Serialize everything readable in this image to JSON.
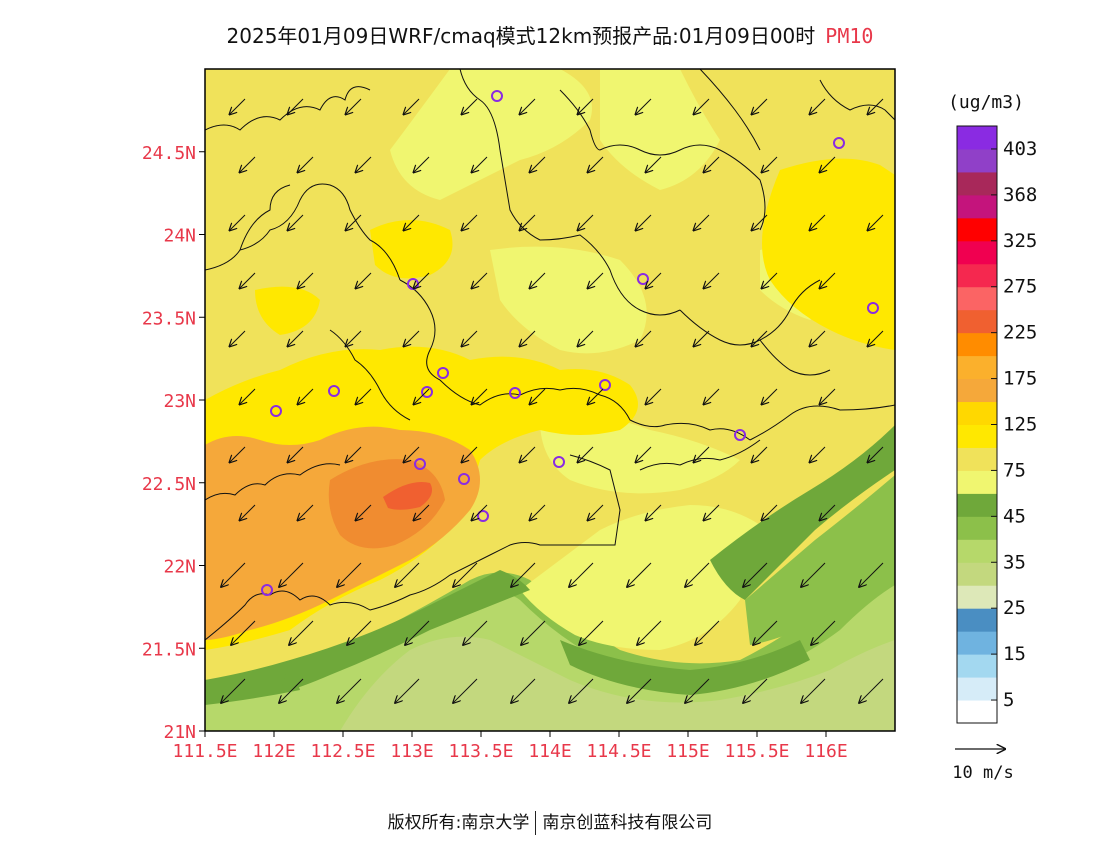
{
  "title": {
    "main": "2025年01月09日WRF/cmaq模式12km预报产品:01月09日00时",
    "variable": "PM10"
  },
  "map": {
    "lat_labels": [
      "24.5N",
      "24N",
      "23.5N",
      "23N",
      "22.5N",
      "22N",
      "21.5N",
      "21N"
    ],
    "lon_labels": [
      "111.5E",
      "112E",
      "112.5E",
      "113E",
      "113.5E",
      "114E",
      "114.5E",
      "115E",
      "115.5E",
      "116E"
    ],
    "label_color": "#e8384a",
    "lon_range": [
      111.5,
      116.5
    ],
    "lat_range": [
      21.0,
      25.0
    ],
    "wind_direction": "north-easterly flow toward south-west"
  },
  "legend": {
    "unit": "(ug/m3)",
    "colors": [
      "#ffffff",
      "#d6ecf8",
      "#a3d8f0",
      "#6fb3e0",
      "#4a8ec2",
      "#dde8b8",
      "#c3d87e",
      "#b6d86a",
      "#8cc04a",
      "#6fa83a",
      "#f0f670",
      "#f0e25a",
      "#ffe800",
      "#ffd800",
      "#f5a83a",
      "#fbb02c",
      "#ff8c00",
      "#f06030",
      "#fb6464",
      "#f5284f",
      "#f00050",
      "#ff0000",
      "#c4147c",
      "#a8285a",
      "#9040c8",
      "#8a2be2"
    ],
    "labels": [
      "5",
      "15",
      "25",
      "35",
      "45",
      "75",
      "125",
      "175",
      "225",
      "275",
      "325",
      "368",
      "403"
    ]
  },
  "wind_scale": {
    "label": "10 m/s"
  },
  "footer": {
    "left": "版权所有:南京大学",
    "right": "南京创蓝科技有限公司"
  }
}
